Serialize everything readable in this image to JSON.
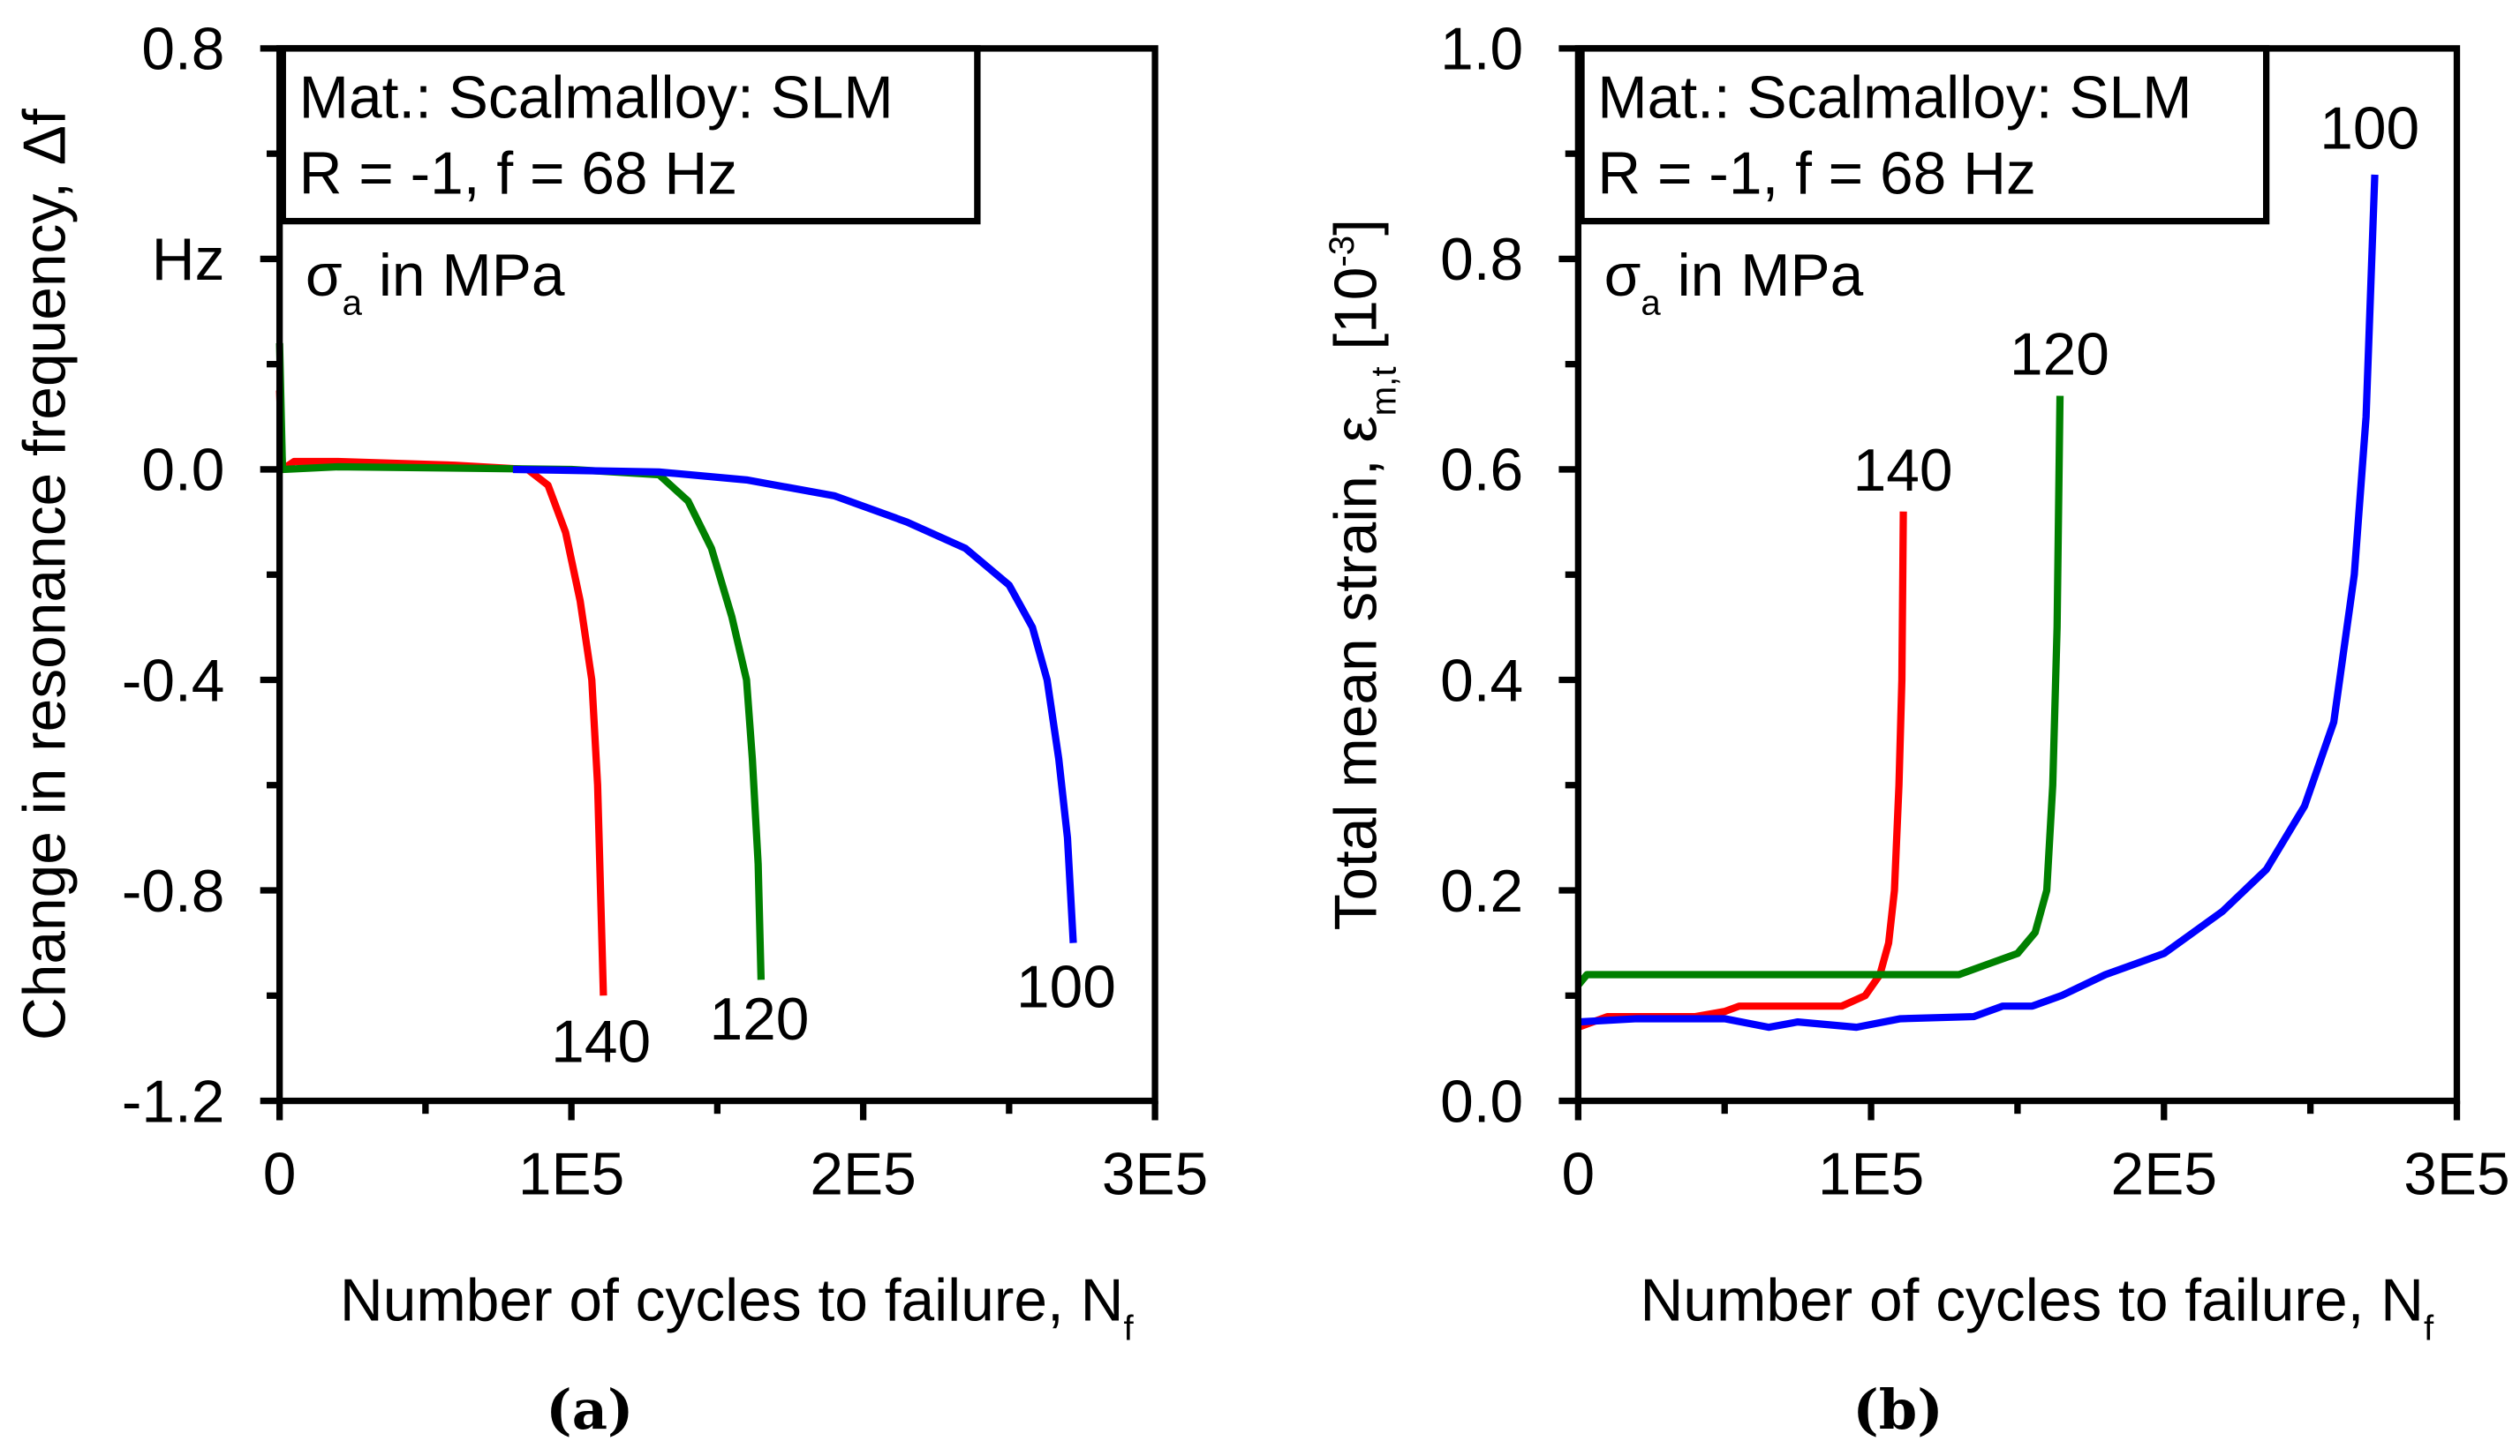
{
  "chart_data": [
    {
      "type": "line",
      "panel_label": "(a)",
      "xlabel": "Number of cycles to failure, N",
      "xlabel_sub": "f",
      "ylabel": "Change in resonance frequency, Δf",
      "y_unit_label": "Hz",
      "xlim": [
        0,
        300000
      ],
      "ylim": [
        -1.2,
        0.8
      ],
      "xticks": [
        {
          "v": 0,
          "t": "0"
        },
        {
          "v": 100000,
          "t": "1E5"
        },
        {
          "v": 200000,
          "t": "2E5"
        },
        {
          "v": 300000,
          "t": "3E5"
        }
      ],
      "yticks": [
        {
          "v": 0.8,
          "t": "0.8"
        },
        {
          "v": 0.4,
          "t": "Hz"
        },
        {
          "v": 0.0,
          "t": "0.0"
        },
        {
          "v": -0.4,
          "t": "-0.4"
        },
        {
          "v": -0.8,
          "t": "-0.8"
        },
        {
          "v": -1.2,
          "t": "-1.2"
        }
      ],
      "info": [
        "Mat.: Scalmalloy: SLM",
        "R = -1, f = 68 Hz"
      ],
      "sigma_note": {
        "sym": "σ",
        "sub": "a",
        "text": " in MPa"
      },
      "series": [
        {
          "name": "140",
          "color": "#ff0000",
          "x": [
            0,
            1000,
            5000,
            20000,
            60000,
            85000,
            92000,
            98000,
            103000,
            107000,
            109000,
            110000,
            111000
          ],
          "y": [
            0.15,
            0,
            0.015,
            0.015,
            0.008,
            0,
            -0.03,
            -0.12,
            -0.25,
            -0.4,
            -0.6,
            -0.8,
            -1.0
          ]
        },
        {
          "name": "120",
          "color": "#008000",
          "x": [
            0,
            1000,
            20000,
            100000,
            130000,
            140000,
            148000,
            155000,
            160000,
            162000,
            164000,
            165000
          ],
          "y": [
            0.24,
            0,
            0.005,
            0,
            -0.01,
            -0.06,
            -0.15,
            -0.28,
            -0.4,
            -0.55,
            -0.75,
            -0.97
          ]
        },
        {
          "name": "100",
          "color": "#0000ff",
          "x": [
            80000,
            130000,
            160000,
            190000,
            215000,
            235000,
            250000,
            258000,
            263000,
            267000,
            270000,
            272000
          ],
          "y": [
            0,
            -0.005,
            -0.02,
            -0.05,
            -0.1,
            -0.15,
            -0.22,
            -0.3,
            -0.4,
            -0.55,
            -0.7,
            -0.9
          ]
        }
      ]
    },
    {
      "type": "line",
      "panel_label": "(b)",
      "xlabel": "Number of cycles to failure, N",
      "xlabel_sub": "f",
      "ylabel": "Total mean strain, ε",
      "ylabel_sub": "m,t",
      "ylabel_unit": " [10",
      "ylabel_sup": "-3",
      "ylabel_end": "]",
      "xlim": [
        0,
        300000
      ],
      "ylim": [
        0,
        1.0
      ],
      "xticks": [
        {
          "v": 0,
          "t": "0"
        },
        {
          "v": 100000,
          "t": "1E5"
        },
        {
          "v": 200000,
          "t": "2E5"
        },
        {
          "v": 300000,
          "t": "3E5"
        }
      ],
      "yticks": [
        {
          "v": 0,
          "t": "0.0"
        },
        {
          "v": 0.2,
          "t": "0.2"
        },
        {
          "v": 0.4,
          "t": "0.4"
        },
        {
          "v": 0.6,
          "t": "0.6"
        },
        {
          "v": 0.8,
          "t": "0.8"
        },
        {
          "v": 1.0,
          "t": "1.0"
        }
      ],
      "info": [
        "Mat.: Scalmalloy: SLM",
        "R = -1, f = 68 Hz"
      ],
      "sigma_note": {
        "sym": "σ",
        "sub": "a",
        "text": " in MPa"
      },
      "series": [
        {
          "name": "140",
          "color": "#ff0000",
          "x": [
            0,
            10000,
            40000,
            50000,
            55000,
            90000,
            98000,
            103000,
            106000,
            108000,
            109500,
            110500,
            111000
          ],
          "y": [
            0.07,
            0.08,
            0.08,
            0.085,
            0.09,
            0.09,
            0.1,
            0.12,
            0.15,
            0.2,
            0.3,
            0.4,
            0.56
          ]
        },
        {
          "name": "120",
          "color": "#008000",
          "x": [
            0,
            3000,
            130000,
            140000,
            150000,
            156000,
            160000,
            162000,
            163500,
            164500
          ],
          "y": [
            0.11,
            0.12,
            0.12,
            0.13,
            0.14,
            0.16,
            0.2,
            0.3,
            0.45,
            0.67
          ]
        },
        {
          "name": "100",
          "color": "#0000ff",
          "x": [
            0,
            20000,
            50000,
            65000,
            75000,
            95000,
            110000,
            135000,
            145000,
            155000,
            165000,
            180000,
            200000,
            220000,
            235000,
            248000,
            258000,
            265000,
            269000,
            272000
          ],
          "y": [
            0.075,
            0.078,
            0.078,
            0.07,
            0.075,
            0.07,
            0.078,
            0.08,
            0.09,
            0.09,
            0.1,
            0.12,
            0.14,
            0.18,
            0.22,
            0.28,
            0.36,
            0.5,
            0.65,
            0.88
          ]
        }
      ]
    }
  ]
}
